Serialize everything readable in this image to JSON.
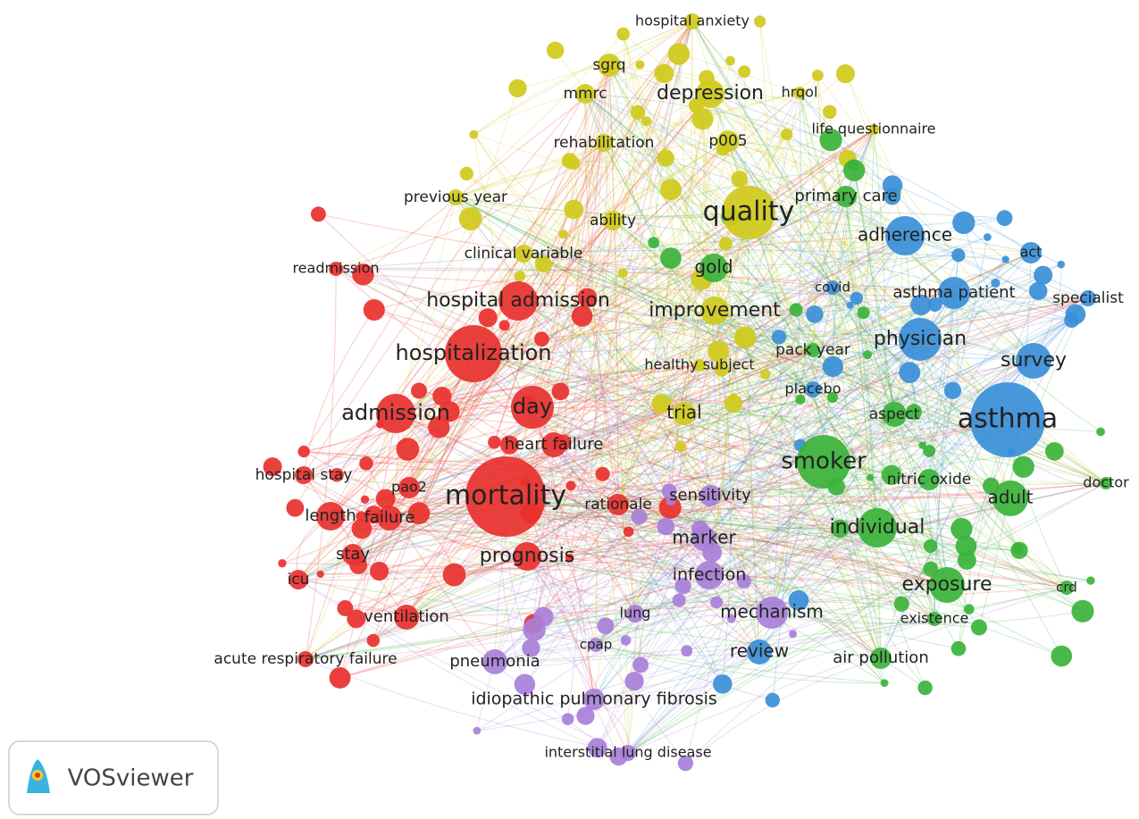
{
  "nodes": [
    {
      "label": "hospital anxiety",
      "color": "#cfca1c"
    },
    {
      "label": "sgrq",
      "color": "#cfca1c"
    },
    {
      "label": "mmrc",
      "color": "#cfca1c"
    },
    {
      "label": "depression",
      "color": "#cfca1c"
    },
    {
      "label": "hrqol",
      "color": "#cfca1c"
    },
    {
      "label": "life questionnaire",
      "color": "#cfca1c"
    },
    {
      "label": "rehabilitation",
      "color": "#cfca1c"
    },
    {
      "label": "p005",
      "color": "#cfca1c"
    },
    {
      "label": "quality",
      "color": "#cfca1c"
    },
    {
      "label": "previous year",
      "color": "#cfca1c"
    },
    {
      "label": "ability",
      "color": "#cfca1c"
    },
    {
      "label": "clinical variable",
      "color": "#cfca1c"
    },
    {
      "label": "improvement",
      "color": "#cfca1c"
    },
    {
      "label": "healthy subject",
      "color": "#cfca1c"
    },
    {
      "label": "trial",
      "color": "#cfca1c"
    },
    {
      "label": "readmission",
      "color": "#e8312f"
    },
    {
      "label": "hospital admission",
      "color": "#e8312f"
    },
    {
      "label": "hospitalization",
      "color": "#e8312f"
    },
    {
      "label": "admission",
      "color": "#e8312f"
    },
    {
      "label": "day",
      "color": "#e8312f"
    },
    {
      "label": "heart failure",
      "color": "#e8312f"
    },
    {
      "label": "hospital stay",
      "color": "#e8312f"
    },
    {
      "label": "pao2",
      "color": "#e8312f"
    },
    {
      "label": "mortality",
      "color": "#e8312f"
    },
    {
      "label": "rationale",
      "color": "#e8312f"
    },
    {
      "label": "length",
      "color": "#e8312f"
    },
    {
      "label": "failure",
      "color": "#e8312f"
    },
    {
      "label": "stay",
      "color": "#e8312f"
    },
    {
      "label": "prognosis",
      "color": "#e8312f"
    },
    {
      "label": "icu",
      "color": "#e8312f"
    },
    {
      "label": "ventilation",
      "color": "#e8312f"
    },
    {
      "label": "acute respiratory failure",
      "color": "#e8312f"
    },
    {
      "label": "primary care",
      "color": "#3bb33b"
    },
    {
      "label": "gold",
      "color": "#3bb33b"
    },
    {
      "label": "pack year",
      "color": "#3bb33b"
    },
    {
      "label": "aspect",
      "color": "#3bb33b"
    },
    {
      "label": "smoker",
      "color": "#3bb33b"
    },
    {
      "label": "nitric oxide",
      "color": "#3bb33b"
    },
    {
      "label": "doctor",
      "color": "#3bb33b"
    },
    {
      "label": "adult",
      "color": "#3bb33b"
    },
    {
      "label": "individual",
      "color": "#3bb33b"
    },
    {
      "label": "exposure",
      "color": "#3bb33b"
    },
    {
      "label": "crd",
      "color": "#3bb33b"
    },
    {
      "label": "existence",
      "color": "#3bb33b"
    },
    {
      "label": "air pollution",
      "color": "#3bb33b"
    },
    {
      "label": "adherence",
      "color": "#3a8fd8"
    },
    {
      "label": "act",
      "color": "#3a8fd8"
    },
    {
      "label": "covid",
      "color": "#3a8fd8"
    },
    {
      "label": "asthma patient",
      "color": "#3a8fd8"
    },
    {
      "label": "specialist",
      "color": "#3a8fd8"
    },
    {
      "label": "physician",
      "color": "#3a8fd8"
    },
    {
      "label": "survey",
      "color": "#3a8fd8"
    },
    {
      "label": "placebo",
      "color": "#3a8fd8"
    },
    {
      "label": "asthma",
      "color": "#3a8fd8"
    },
    {
      "label": "review",
      "color": "#3a8fd8"
    },
    {
      "label": "sensitivity",
      "color": "#a87fd8"
    },
    {
      "label": "marker",
      "color": "#a87fd8"
    },
    {
      "label": "infection",
      "color": "#a87fd8"
    },
    {
      "label": "mechanism",
      "color": "#a87fd8"
    },
    {
      "label": "lung",
      "color": "#a87fd8"
    },
    {
      "label": "cpap",
      "color": "#a87fd8"
    },
    {
      "label": "pneumonia",
      "color": "#a87fd8"
    },
    {
      "label": "idiopathic pulmonary fibrosis",
      "color": "#a87fd8"
    },
    {
      "label": "interstitial lung disease",
      "color": "#a87fd8"
    }
  ],
  "logo": {
    "text": "VOSviewer"
  }
}
